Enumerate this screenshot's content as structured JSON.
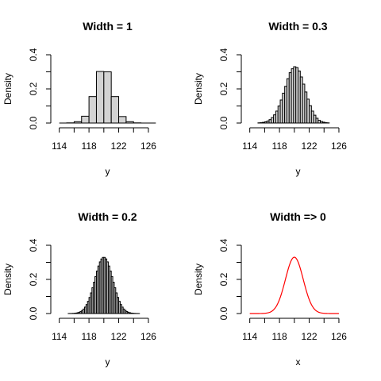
{
  "chart_data": [
    {
      "type": "bar",
      "title": "Width = 1",
      "xlabel": "y",
      "ylabel": "Density",
      "xlim": [
        113.5,
        127.5
      ],
      "ylim": [
        0,
        0.4
      ],
      "xticks": [
        114,
        118,
        122,
        126
      ],
      "yticks": [
        0.0,
        0.2,
        0.4
      ],
      "bin_width": 1,
      "bins_start": [
        114,
        115,
        116,
        117,
        118,
        119,
        120,
        121,
        122,
        123,
        124,
        125,
        126
      ],
      "values": [
        0.0,
        0.001,
        0.008,
        0.04,
        0.155,
        0.302,
        0.3,
        0.155,
        0.038,
        0.008,
        0.001,
        0.0,
        0.0
      ]
    },
    {
      "type": "bar",
      "title": "Width = 0.3",
      "xlabel": "y",
      "ylabel": "Density",
      "xlim": [
        113.5,
        127.5
      ],
      "ylim": [
        0,
        0.4
      ],
      "xticks": [
        114,
        118,
        122,
        126
      ],
      "yticks": [
        0.0,
        0.2,
        0.4
      ],
      "bin_width": 0.3,
      "bins_start": [
        115.1,
        115.4,
        115.7,
        116.0,
        116.3,
        116.6,
        116.9,
        117.2,
        117.5,
        117.8,
        118.1,
        118.4,
        118.7,
        119.0,
        119.3,
        119.6,
        119.9,
        120.2,
        120.5,
        120.8,
        121.1,
        121.4,
        121.7,
        122.0,
        122.3,
        122.6,
        122.9,
        123.2,
        123.5,
        123.8,
        124.1,
        124.4
      ],
      "values": [
        0.001,
        0.002,
        0.004,
        0.007,
        0.012,
        0.02,
        0.032,
        0.048,
        0.07,
        0.1,
        0.135,
        0.175,
        0.215,
        0.26,
        0.295,
        0.318,
        0.33,
        0.325,
        0.305,
        0.27,
        0.228,
        0.182,
        0.14,
        0.102,
        0.07,
        0.046,
        0.028,
        0.016,
        0.009,
        0.005,
        0.002,
        0.001
      ]
    },
    {
      "type": "bar",
      "title": "Width = 0.2",
      "xlabel": "y",
      "ylabel": "Density",
      "xlim": [
        113.5,
        127.5
      ],
      "ylim": [
        0,
        0.4
      ],
      "xticks": [
        114,
        118,
        122,
        126
      ],
      "yticks": [
        0.0,
        0.2,
        0.4
      ],
      "bin_width": 0.2,
      "center": 120,
      "sd": 1.2,
      "range": [
        115.2,
        124.8
      ],
      "peak": 0.33
    },
    {
      "type": "line",
      "title": "Width => 0",
      "xlabel": "x",
      "ylabel": "Density",
      "xlim": [
        113.5,
        127.5
      ],
      "ylim": [
        0,
        0.4
      ],
      "xticks": [
        114,
        118,
        122,
        126
      ],
      "yticks": [
        0.0,
        0.2,
        0.4
      ],
      "color": "#ff0000",
      "center": 120,
      "sd": 1.2,
      "peak": 0.33,
      "range": [
        114,
        126
      ]
    }
  ]
}
